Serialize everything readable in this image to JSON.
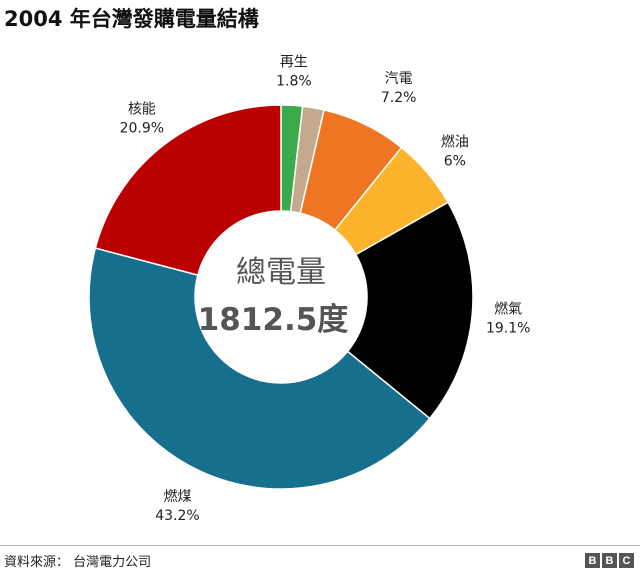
{
  "chart_data": {
    "type": "pie",
    "title": "2004 年台灣發購電量結構",
    "center_title": "總電量",
    "center_value": "1812.5度",
    "slices": [
      {
        "label": "再生",
        "value": 1.8,
        "value_text": "1.8%",
        "color": "#3aaa4a"
      },
      {
        "label": "",
        "value": 1.8,
        "value_text": "",
        "color": "#c4a98e"
      },
      {
        "label": "汽電",
        "value": 7.2,
        "value_text": "7.2%",
        "color": "#ee7623"
      },
      {
        "label": "燃油",
        "value": 6,
        "value_text": "6%",
        "color": "#fdb32b"
      },
      {
        "label": "燃氣",
        "value": 19.1,
        "value_text": "19.1%",
        "color": "#000000"
      },
      {
        "label": "燃煤",
        "value": 43.2,
        "value_text": "43.2%",
        "color": "#166f8c"
      },
      {
        "label": "核能",
        "value": 20.9,
        "value_text": "20.9%",
        "color": "#bb0000"
      }
    ]
  },
  "source": "資料來源： 台灣電力公司",
  "logo": [
    "B",
    "B",
    "C"
  ]
}
